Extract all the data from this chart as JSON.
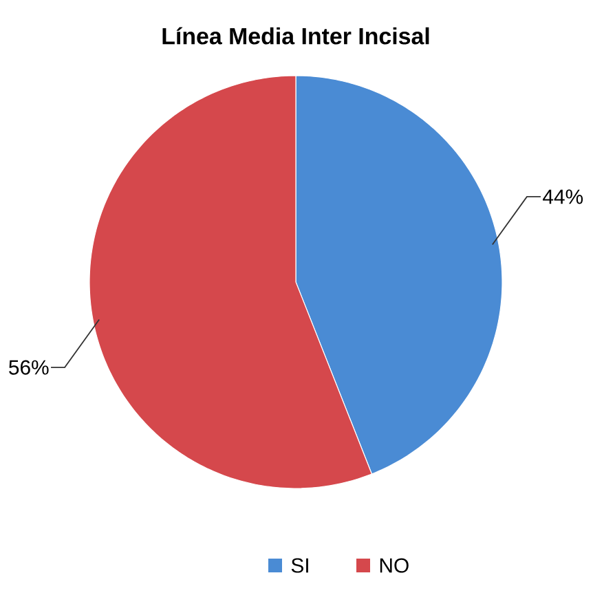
{
  "chart_data": {
    "type": "pie",
    "title": "Línea Media Inter Incisal",
    "categories": [
      "SI",
      "NO"
    ],
    "values": [
      44,
      56
    ],
    "colors": [
      "#4a8bd4",
      "#d5484c"
    ],
    "value_labels": [
      "44%",
      "56%"
    ],
    "legend": "bottom"
  }
}
